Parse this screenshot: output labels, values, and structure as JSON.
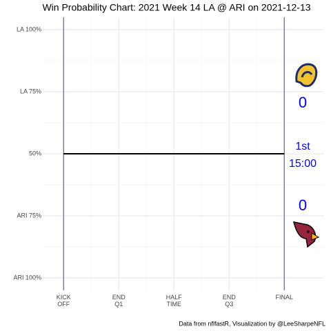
{
  "chart_data": {
    "type": "line",
    "title": "Win Probability Chart: 2021 Week 14 LA @ ARI on 2021-12-13",
    "caption": "Data from nflfastR, Visualization by @LeeSharpeNFL",
    "x": [
      0,
      3600
    ],
    "series": [
      {
        "color": "#000000",
        "values": [
          50,
          50
        ]
      }
    ],
    "xlim": [
      -340,
      4250
    ],
    "xticks": [
      {
        "value": 0,
        "label": "KICK\nOFF"
      },
      {
        "value": 900,
        "label": "END\nQ1"
      },
      {
        "value": 1800,
        "label": "HALF\nTIME"
      },
      {
        "value": 2700,
        "label": "END\nQ3"
      },
      {
        "value": 3600,
        "label": "FINAL"
      }
    ],
    "ylim": [
      -5,
      105
    ],
    "yticks": [
      {
        "value": 0,
        "label": "ARI 100%"
      },
      {
        "value": 25,
        "label": "ARI 75%"
      },
      {
        "value": 50,
        "label": "50%"
      },
      {
        "value": 75,
        "label": "LA 75%"
      },
      {
        "value": 100,
        "label": "LA 100%"
      }
    ],
    "grid": true,
    "away_score": 0,
    "home_score": 0,
    "quarter": "1st",
    "clock": "15:00",
    "annotation_color": "#0000ff",
    "boundary_color": "#3b3f8f"
  }
}
